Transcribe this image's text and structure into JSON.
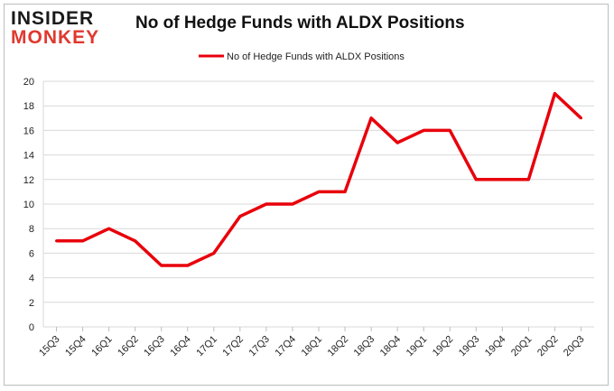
{
  "logo": {
    "line1": "INSIDER",
    "line2": "MONKEY"
  },
  "chart_data": {
    "type": "line",
    "title": "No of Hedge Funds with ALDX Positions",
    "xlabel": "",
    "ylabel": "",
    "categories": [
      "15Q3",
      "15Q4",
      "16Q1",
      "16Q2",
      "16Q3",
      "16Q4",
      "17Q1",
      "17Q2",
      "17Q3",
      "17Q4",
      "18Q1",
      "18Q2",
      "18Q3",
      "18Q4",
      "19Q1",
      "19Q2",
      "19Q3",
      "19Q4",
      "20Q1",
      "20Q2",
      "20Q3"
    ],
    "series": [
      {
        "name": "No of Hedge Funds with ALDX Positions",
        "values": [
          7,
          7,
          8,
          7,
          5,
          5,
          6,
          9,
          10,
          10,
          11,
          11,
          17,
          15,
          16,
          16,
          12,
          12,
          12,
          19,
          17
        ]
      }
    ],
    "ylim": [
      0,
      20
    ],
    "yticks": [
      0,
      2,
      4,
      6,
      8,
      10,
      12,
      14,
      16,
      18,
      20
    ],
    "grid": true,
    "legend": "top-center",
    "line_color": "#e8000b"
  }
}
